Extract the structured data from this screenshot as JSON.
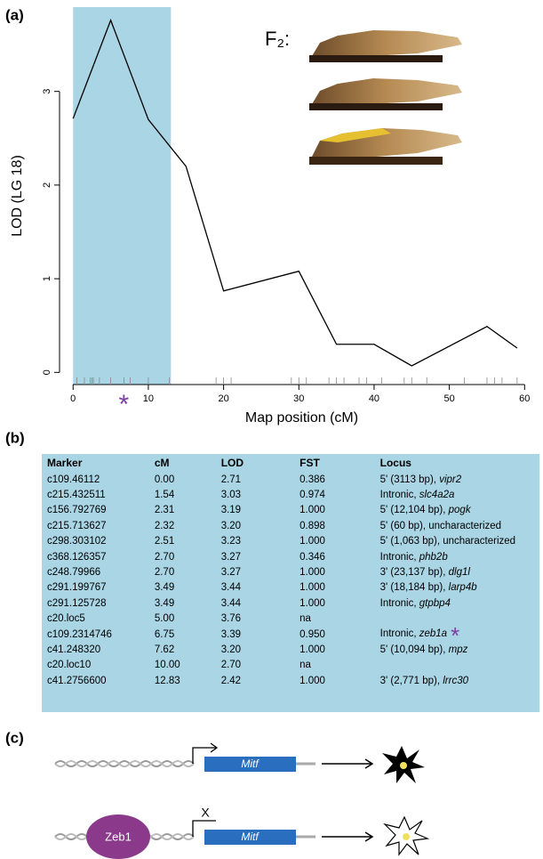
{
  "chart_data": {
    "type": "line",
    "panel": "(a)",
    "x_label": "Map position (cM)",
    "y_label": "LOD (LG 18)",
    "x": [
      0,
      5,
      10,
      15,
      20,
      30,
      35,
      40,
      45,
      55,
      59
    ],
    "series": [
      {
        "color": "#000000",
        "values": [
          2.71,
          3.76,
          2.7,
          2.2,
          0.87,
          1.08,
          0.3,
          0.3,
          0.07,
          0.49,
          0.26
        ]
      }
    ],
    "xlim": [
      -1.8,
      60.2
    ],
    "ylim": [
      -0.13,
      3.9
    ],
    "xticks": [
      0,
      10,
      20,
      30,
      40,
      50,
      60
    ],
    "yticks": [
      0,
      1,
      2,
      3
    ],
    "highlight_x": [
      0,
      13
    ],
    "highlight_color": "#a9d5e5",
    "rug": [
      0.5,
      1.5,
      2.3,
      2.5,
      2.7,
      3.5,
      5,
      6.75,
      7.6,
      10,
      12.8,
      19,
      20,
      21,
      29,
      30,
      31,
      34,
      35,
      36,
      38,
      39,
      41,
      44,
      45,
      47,
      52,
      55,
      56,
      57,
      59
    ],
    "annotation": {
      "text": "*",
      "x": 6.75,
      "color": "#7b3fa0"
    },
    "inset_label": "F₂:"
  },
  "table": {
    "panel": "(b)",
    "header": [
      "Marker",
      "cM",
      "LOD",
      "FST",
      "Locus"
    ],
    "rows": [
      {
        "cells": [
          "c109.46112",
          "0.00",
          "2.71",
          "0.386"
        ],
        "locus": "5' (3113 bp),",
        "gene": "vipr2"
      },
      {
        "cells": [
          "c215.432511",
          "1.54",
          "3.03",
          "0.974"
        ],
        "locus": "Intronic,",
        "gene": "slc4a2a"
      },
      {
        "cells": [
          "c156.792769",
          "2.31",
          "3.19",
          "1.000"
        ],
        "locus": "5' (12,104 bp),",
        "gene": "pogk"
      },
      {
        "cells": [
          "c215.713627",
          "2.32",
          "3.20",
          "0.898"
        ],
        "locus": "5' (60 bp), uncharacterized"
      },
      {
        "cells": [
          "c298.303102",
          "2.51",
          "3.23",
          "1.000"
        ],
        "locus": "5' (1,063 bp), uncharacterized"
      },
      {
        "cells": [
          "c368.126357",
          "2.70",
          "3.27",
          "0.346"
        ],
        "locus": "Intronic,",
        "gene": "phb2b"
      },
      {
        "cells": [
          "c248.79966",
          "2.70",
          "3.27",
          "1.000"
        ],
        "locus": "3' (23,137 bp),",
        "gene": "dlg1l"
      },
      {
        "cells": [
          "c291.199767",
          "3.49",
          "3.44",
          "1.000"
        ],
        "locus": "3' (18,184 bp),",
        "gene": "larp4b"
      },
      {
        "cells": [
          "c291.125728",
          "3.49",
          "3.44",
          "1.000"
        ],
        "locus": "Intronic,",
        "gene": "gtpbp4"
      },
      {
        "cells": [
          "c20.loc5",
          "5.00",
          "3.76",
          "na"
        ]
      },
      {
        "cells": [
          "c109.2314746",
          "6.75",
          "3.39",
          "0.950"
        ],
        "locus": "Intronic,",
        "gene": "zeb1a",
        "mark": "*"
      },
      {
        "cells": [
          "c41.248320",
          "7.62",
          "3.20",
          "1.000"
        ],
        "locus": "5' (10,094 bp),",
        "gene": "mpz"
      },
      {
        "cells": [
          "c20.loc10",
          "10.00",
          "2.70",
          "na"
        ]
      },
      {
        "cells": [
          "c41.2756600",
          "12.83",
          "2.42",
          "1.000"
        ],
        "locus": "3' (2,771 bp),",
        "gene": "lrrc30"
      }
    ]
  },
  "diagram": {
    "panel": "(c)",
    "gene": "Mitf",
    "repressor": "Zeb1",
    "block": "X"
  }
}
